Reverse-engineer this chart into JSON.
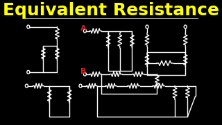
{
  "background_color": "#000000",
  "title": "Equivalent Resistance",
  "title_color": "#FFFF00",
  "title_fontsize": 18,
  "line_color": "#FFFFFF",
  "label_a_color": "#CC2222",
  "label_b_color": "#CC2222",
  "fig_width": 3.2,
  "fig_height": 1.8,
  "dpi": 100
}
